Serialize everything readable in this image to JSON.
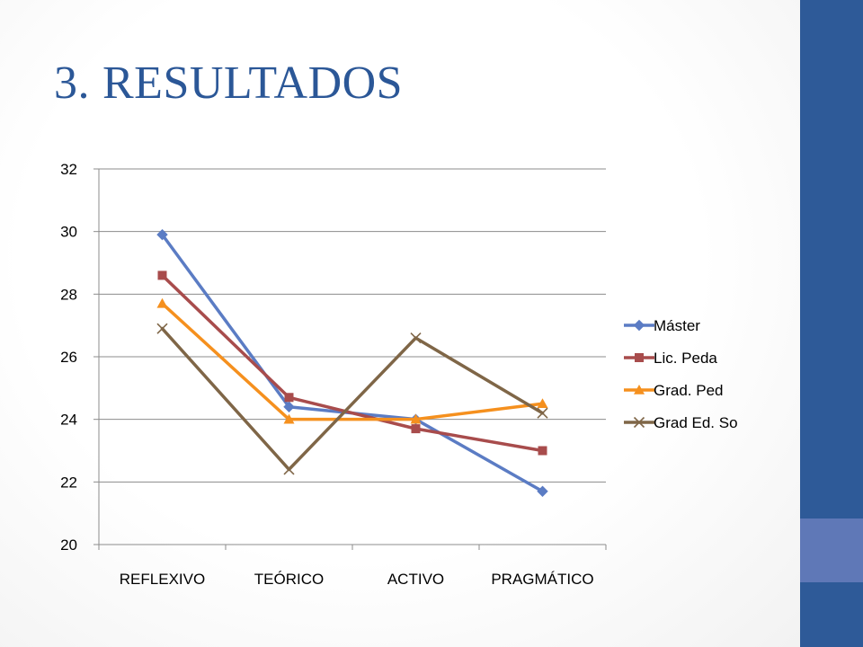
{
  "slide": {
    "title_number": "3.",
    "title_text": "RESULTADOS"
  },
  "colors": {
    "title": "#2b5797",
    "side_bar": "#2e5a98",
    "side_accent": "#5f78b7"
  },
  "chart_data": {
    "type": "line",
    "title": "",
    "xlabel": "",
    "ylabel": "",
    "categories": [
      "REFLEXIVO",
      "TEÓRICO",
      "ACTIVO",
      "PRAGMÁTICO"
    ],
    "ylim": [
      20,
      32
    ],
    "yticks": [
      20,
      22,
      24,
      26,
      28,
      30,
      32
    ],
    "grid": "horizontal",
    "legend": "right",
    "series": [
      {
        "name": "Máster",
        "values": [
          29.9,
          24.4,
          24.0,
          21.7
        ],
        "color": "#5b7cc4",
        "marker": "diamond"
      },
      {
        "name": "Lic. Peda",
        "values": [
          28.6,
          24.7,
          23.7,
          23.0
        ],
        "color": "#a84c4c",
        "marker": "square"
      },
      {
        "name": "Grad. Ped",
        "values": [
          27.7,
          24.0,
          24.0,
          24.5
        ],
        "color": "#f5901e",
        "marker": "triangle"
      },
      {
        "name": "Grad Ed. So",
        "values": [
          26.9,
          22.4,
          26.6,
          24.2
        ],
        "color": "#7f6647",
        "marker": "x"
      }
    ]
  }
}
